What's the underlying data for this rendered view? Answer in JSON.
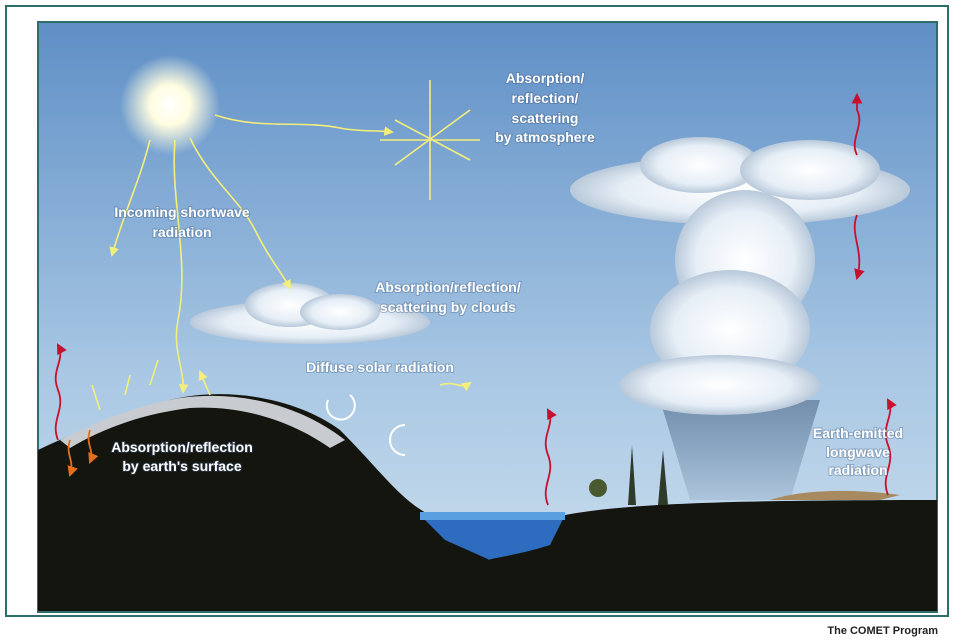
{
  "labels": {
    "atmosphere": [
      "Absorption/",
      "reflection/",
      "scattering",
      "by atmosphere"
    ],
    "incoming": [
      "Incoming shortwave",
      "radiation"
    ],
    "clouds": [
      "Absorption/reflection/",
      "scattering by clouds"
    ],
    "diffuse": [
      "Diffuse solar radiation"
    ],
    "surface": [
      "Absorption/reflection",
      "by earth's surface"
    ],
    "longwave": [
      "Earth-emitted",
      "longwave",
      "radiation"
    ]
  },
  "credit": "The COMET Program"
}
